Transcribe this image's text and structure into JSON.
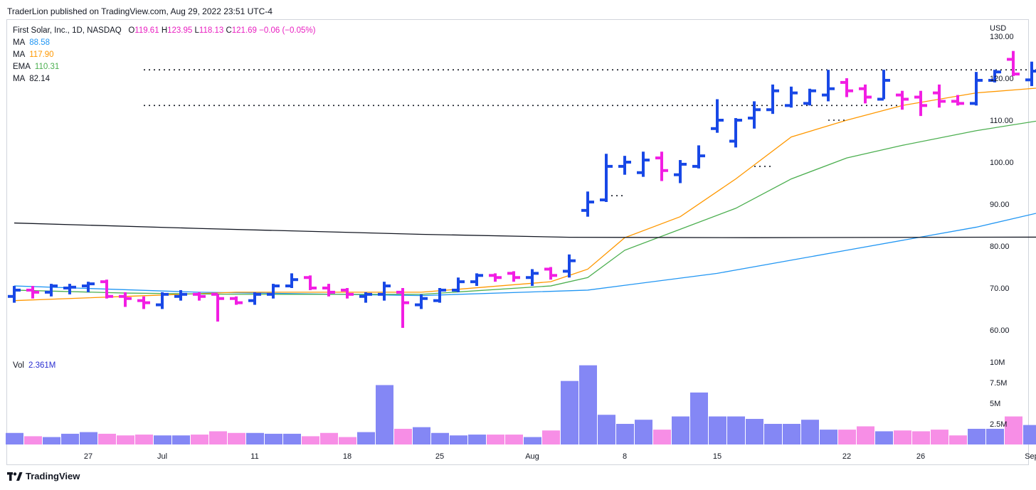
{
  "header": {
    "published": "TraderLion published on TradingView.com, Aug 29, 2022 23:51 UTC-4"
  },
  "symbol": {
    "title": "First Solar, Inc., 1D, NASDAQ",
    "open_key": "O",
    "open": "119.61",
    "high_key": "H",
    "high": "123.95",
    "low_key": "L",
    "low": "118.13",
    "close_key": "C",
    "close": "121.69",
    "change": "−0.06 (−0.05%)"
  },
  "indicators": [
    {
      "name": "MA",
      "value": "88.58",
      "color": "#2196f3"
    },
    {
      "name": "MA",
      "value": "117.90",
      "color": "#ff9800"
    },
    {
      "name": "EMA",
      "value": "110.31",
      "color": "#4caf50"
    },
    {
      "name": "MA",
      "value": "82.14",
      "color": "#131722"
    }
  ],
  "volume_legend": {
    "name": "Vol",
    "value": "2.361M"
  },
  "currency": "USD",
  "footer": {
    "brand": "TradingView"
  },
  "colors": {
    "up": "#1848e6",
    "down": "#f21ee3",
    "vol_up": "#8487f5",
    "vol_down": "#f78ee6"
  },
  "chart_data": {
    "type": "ohlc-bar",
    "price_axis": {
      "ticks": [
        60,
        70,
        80,
        90,
        100,
        110,
        120,
        130
      ],
      "tick_labels": [
        "60.00",
        "70.00",
        "80.00",
        "90.00",
        "100.00",
        "110.00",
        "120.00",
        "130.00"
      ]
    },
    "volume_axis": {
      "ticks": [
        2500000,
        5000000,
        7500000,
        10000000
      ],
      "tick_labels": [
        "2.5M",
        "5M",
        "7.5M",
        "10M"
      ]
    },
    "x_labels": [
      {
        "label": "27",
        "date": "2022-06-27"
      },
      {
        "label": "Jul",
        "date": "2022-07-01"
      },
      {
        "label": "11",
        "date": "2022-07-11"
      },
      {
        "label": "18",
        "date": "2022-07-18"
      },
      {
        "label": "25",
        "date": "2022-07-25"
      },
      {
        "label": "Aug",
        "date": "2022-08-01"
      },
      {
        "label": "8",
        "date": "2022-08-08"
      },
      {
        "label": "15",
        "date": "2022-08-15"
      },
      {
        "label": "22",
        "date": "2022-08-22"
      },
      {
        "label": "26",
        "date": "2022-08-26"
      },
      {
        "label": "Sep",
        "date": "2022-09-01"
      }
    ],
    "bars": [
      {
        "date": "2022-06-21",
        "o": 68.0,
        "h": 70.5,
        "l": 66.5,
        "c": 69.5,
        "v": 1.4
      },
      {
        "date": "2022-06-22",
        "o": 69.5,
        "h": 70.5,
        "l": 67.5,
        "c": 69.0,
        "v": 1.0
      },
      {
        "date": "2022-06-23",
        "o": 69.0,
        "h": 71.0,
        "l": 68.0,
        "c": 70.5,
        "v": 0.9
      },
      {
        "date": "2022-06-24",
        "o": 70.0,
        "h": 71.0,
        "l": 68.5,
        "c": 70.2,
        "v": 1.3
      },
      {
        "date": "2022-06-27",
        "o": 70.5,
        "h": 71.5,
        "l": 69.0,
        "c": 71.0,
        "v": 1.5
      },
      {
        "date": "2022-06-28",
        "o": 71.5,
        "h": 72.0,
        "l": 67.5,
        "c": 68.0,
        "v": 1.3
      },
      {
        "date": "2022-06-29",
        "o": 68.0,
        "h": 69.0,
        "l": 65.5,
        "c": 67.5,
        "v": 1.1
      },
      {
        "date": "2022-06-30",
        "o": 67.0,
        "h": 68.0,
        "l": 65.0,
        "c": 66.5,
        "v": 1.2
      },
      {
        "date": "2022-07-01",
        "o": 66.0,
        "h": 69.0,
        "l": 65.0,
        "c": 68.5,
        "v": 1.1
      },
      {
        "date": "2022-07-05",
        "o": 68.0,
        "h": 69.5,
        "l": 67.0,
        "c": 68.5,
        "v": 1.1
      },
      {
        "date": "2022-07-06",
        "o": 68.5,
        "h": 69.0,
        "l": 67.0,
        "c": 68.0,
        "v": 1.2
      },
      {
        "date": "2022-07-07",
        "o": 68.5,
        "h": 68.5,
        "l": 62.0,
        "c": 67.5,
        "v": 1.6
      },
      {
        "date": "2022-07-08",
        "o": 67.5,
        "h": 68.0,
        "l": 66.0,
        "c": 66.5,
        "v": 1.4
      },
      {
        "date": "2022-07-11",
        "o": 67.0,
        "h": 69.0,
        "l": 66.0,
        "c": 68.5,
        "v": 1.4
      },
      {
        "date": "2022-07-12",
        "o": 68.5,
        "h": 71.0,
        "l": 67.5,
        "c": 70.5,
        "v": 1.3
      },
      {
        "date": "2022-07-13",
        "o": 70.5,
        "h": 73.5,
        "l": 70.0,
        "c": 72.0,
        "v": 1.3
      },
      {
        "date": "2022-07-14",
        "o": 72.5,
        "h": 73.0,
        "l": 69.5,
        "c": 70.0,
        "v": 1.0
      },
      {
        "date": "2022-07-15",
        "o": 70.0,
        "h": 71.0,
        "l": 68.0,
        "c": 69.0,
        "v": 1.4
      },
      {
        "date": "2022-07-18",
        "o": 69.5,
        "h": 70.0,
        "l": 67.5,
        "c": 68.5,
        "v": 0.9
      },
      {
        "date": "2022-07-19",
        "o": 68.0,
        "h": 69.0,
        "l": 66.5,
        "c": 68.5,
        "v": 1.5
      },
      {
        "date": "2022-07-20",
        "o": 68.5,
        "h": 71.5,
        "l": 67.0,
        "c": 70.5,
        "v": 7.2
      },
      {
        "date": "2022-07-21",
        "o": 69.0,
        "h": 70.0,
        "l": 60.5,
        "c": 66.5,
        "v": 1.9
      },
      {
        "date": "2022-07-22",
        "o": 66.0,
        "h": 68.5,
        "l": 65.0,
        "c": 67.5,
        "v": 2.1
      },
      {
        "date": "2022-07-25",
        "o": 67.0,
        "h": 70.0,
        "l": 66.5,
        "c": 69.5,
        "v": 1.4
      },
      {
        "date": "2022-07-26",
        "o": 69.5,
        "h": 72.5,
        "l": 69.0,
        "c": 71.5,
        "v": 1.1
      },
      {
        "date": "2022-07-27",
        "o": 71.5,
        "h": 73.5,
        "l": 70.5,
        "c": 73.0,
        "v": 1.2
      },
      {
        "date": "2022-07-28",
        "o": 73.0,
        "h": 73.5,
        "l": 71.5,
        "c": 72.5,
        "v": 1.2
      },
      {
        "date": "2022-07-29",
        "o": 73.5,
        "h": 74.0,
        "l": 71.5,
        "c": 72.5,
        "v": 1.2
      },
      {
        "date": "2022-08-01",
        "o": 72.5,
        "h": 74.5,
        "l": 70.5,
        "c": 73.5,
        "v": 0.9
      },
      {
        "date": "2022-08-02",
        "o": 74.5,
        "h": 75.0,
        "l": 72.0,
        "c": 73.0,
        "v": 1.7
      },
      {
        "date": "2022-08-03",
        "o": 74.0,
        "h": 78.0,
        "l": 72.5,
        "c": 76.5,
        "v": 7.7
      },
      {
        "date": "2022-08-04",
        "o": 88.5,
        "h": 93.0,
        "l": 87.0,
        "c": 90.5,
        "v": 9.6
      },
      {
        "date": "2022-08-05",
        "o": 91.0,
        "h": 102.0,
        "l": 90.5,
        "c": 99.0,
        "v": 3.6
      },
      {
        "date": "2022-08-08",
        "o": 99.0,
        "h": 101.5,
        "l": 97.0,
        "c": 100.0,
        "v": 2.5
      },
      {
        "date": "2022-08-09",
        "o": 97.5,
        "h": 102.5,
        "l": 96.5,
        "c": 100.5,
        "v": 3.0
      },
      {
        "date": "2022-08-10",
        "o": 101.0,
        "h": 102.5,
        "l": 95.5,
        "c": 98.0,
        "v": 1.8
      },
      {
        "date": "2022-08-11",
        "o": 97.0,
        "h": 100.5,
        "l": 95.0,
        "c": 99.5,
        "v": 3.4
      },
      {
        "date": "2022-08-12",
        "o": 99.0,
        "h": 104.0,
        "l": 98.5,
        "c": 101.5,
        "v": 6.3
      },
      {
        "date": "2022-08-15",
        "o": 108.0,
        "h": 115.0,
        "l": 107.0,
        "c": 110.0,
        "v": 3.4
      },
      {
        "date": "2022-08-16",
        "o": 105.0,
        "h": 110.5,
        "l": 103.5,
        "c": 110.0,
        "v": 3.4
      },
      {
        "date": "2022-08-17",
        "o": 110.5,
        "h": 114.5,
        "l": 108.0,
        "c": 112.5,
        "v": 3.1
      },
      {
        "date": "2022-08-18",
        "o": 112.5,
        "h": 118.5,
        "l": 111.5,
        "c": 117.0,
        "v": 2.5
      },
      {
        "date": "2022-08-19",
        "o": 113.5,
        "h": 118.0,
        "l": 113.0,
        "c": 116.5,
        "v": 2.5
      },
      {
        "date": "2022-08-20",
        "o": 114.0,
        "h": 117.5,
        "l": 113.5,
        "c": 117.0,
        "v": 3.0
      },
      {
        "date": "2022-08-21",
        "o": 116.0,
        "h": 122.0,
        "l": 114.5,
        "c": 117.5,
        "v": 1.8
      },
      {
        "date": "2022-08-22",
        "o": 119.0,
        "h": 120.0,
        "l": 115.5,
        "c": 117.0,
        "v": 1.8
      },
      {
        "date": "2022-08-23",
        "o": 117.5,
        "h": 118.5,
        "l": 114.0,
        "c": 115.5,
        "v": 2.2
      },
      {
        "date": "2022-08-24",
        "o": 115.0,
        "h": 122.0,
        "l": 115.0,
        "c": 119.5,
        "v": 1.6
      },
      {
        "date": "2022-08-25",
        "o": 116.0,
        "h": 117.0,
        "l": 112.5,
        "c": 115.0,
        "v": 1.7
      },
      {
        "date": "2022-08-26",
        "o": 115.5,
        "h": 117.0,
        "l": 111.0,
        "c": 113.5,
        "v": 1.6
      },
      {
        "date": "2022-08-27",
        "o": 116.5,
        "h": 118.5,
        "l": 113.0,
        "c": 114.5,
        "v": 1.8
      },
      {
        "date": "2022-08-28",
        "o": 114.5,
        "h": 116.0,
        "l": 113.5,
        "c": 114.0,
        "v": 1.1
      },
      {
        "date": "2022-08-29",
        "o": 114.0,
        "h": 121.5,
        "l": 113.5,
        "c": 119.5,
        "v": 1.9
      },
      {
        "date": "2022-08-30",
        "o": 119.5,
        "h": 122.0,
        "l": 119.0,
        "c": 121.5,
        "v": 1.9
      },
      {
        "date": "2022-08-31",
        "o": 124.5,
        "h": 126.5,
        "l": 120.5,
        "c": 121.0,
        "v": 3.4
      },
      {
        "date": "2022-09-01",
        "o": 119.61,
        "h": 123.95,
        "l": 118.13,
        "c": 121.69,
        "v": 2.361
      }
    ],
    "moving_averages": [
      {
        "name": "MA",
        "color": "#2196f3",
        "points": [
          [
            0,
            70.5
          ],
          [
            10,
            69.0
          ],
          [
            22,
            68.2
          ],
          [
            31,
            69.5
          ],
          [
            38,
            73.5
          ],
          [
            45,
            79.0
          ],
          [
            52,
            84.5
          ],
          [
            56,
            88.58
          ]
        ]
      },
      {
        "name": "MA",
        "color": "#ff9800",
        "points": [
          [
            0,
            67.0
          ],
          [
            6,
            68.0
          ],
          [
            12,
            69.0
          ],
          [
            22,
            69.0
          ],
          [
            29,
            71.5
          ],
          [
            31,
            74.5
          ],
          [
            33,
            82.0
          ],
          [
            36,
            87.0
          ],
          [
            39,
            96.0
          ],
          [
            42,
            106.0
          ],
          [
            45,
            110.0
          ],
          [
            48,
            113.5
          ],
          [
            52,
            116.5
          ],
          [
            56,
            117.9
          ]
        ]
      },
      {
        "name": "EMA",
        "color": "#4caf50",
        "points": [
          [
            0,
            69.5
          ],
          [
            6,
            68.8
          ],
          [
            12,
            68.5
          ],
          [
            22,
            68.5
          ],
          [
            29,
            70.5
          ],
          [
            31,
            72.5
          ],
          [
            33,
            79.0
          ],
          [
            36,
            84.0
          ],
          [
            39,
            89.0
          ],
          [
            42,
            96.0
          ],
          [
            45,
            101.0
          ],
          [
            48,
            104.0
          ],
          [
            52,
            107.5
          ],
          [
            56,
            110.31
          ]
        ]
      },
      {
        "name": "MA",
        "color": "#131722",
        "points": [
          [
            0,
            85.5
          ],
          [
            10,
            84.2
          ],
          [
            22,
            82.8
          ],
          [
            30,
            82.1
          ],
          [
            40,
            82.0
          ],
          [
            56,
            82.14
          ]
        ]
      }
    ],
    "resistance_lines": [
      {
        "from": 7,
        "to": 57,
        "value": 122.0
      },
      {
        "from": 7,
        "to": 48,
        "value": 113.5
      },
      {
        "from": 32,
        "to": 33,
        "value": 92.0
      },
      {
        "from": 40,
        "to": 41,
        "value": 99.0
      },
      {
        "from": 44,
        "to": 45,
        "value": 110.0
      }
    ]
  }
}
